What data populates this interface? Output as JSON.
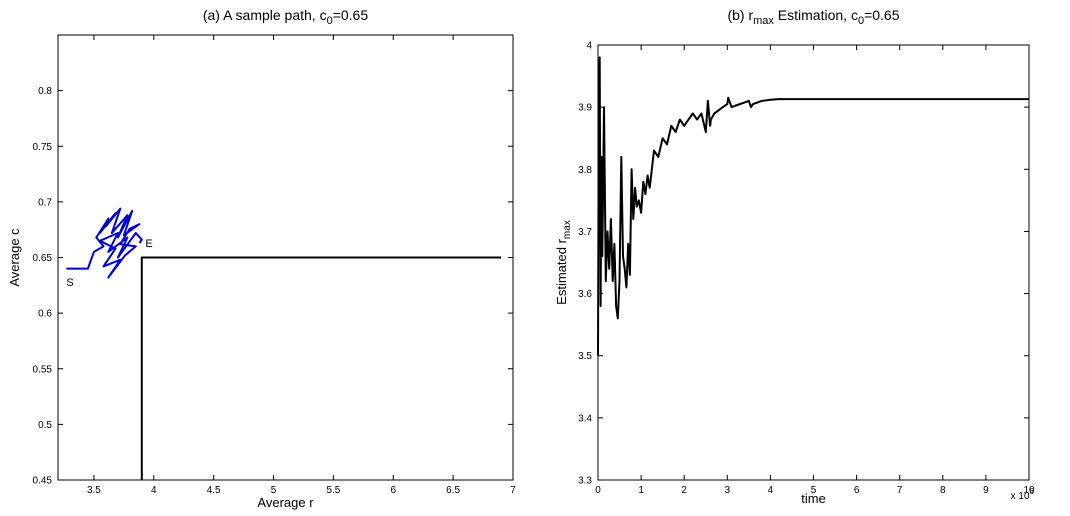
{
  "chart_data": [
    {
      "type": "line",
      "title_prefix": "(a)  A sample path, c",
      "title_sub": "0",
      "title_suffix": "=0.65",
      "xlabel": "Average r",
      "ylabel": "Average c",
      "xlim": [
        3.2,
        7
      ],
      "ylim": [
        0.45,
        0.85
      ],
      "xticks": [
        "3.5",
        "4",
        "4.5",
        "5",
        "5.5",
        "6",
        "6.5",
        "7"
      ],
      "yticks": [
        "0.45",
        "0.5",
        "0.55",
        "0.6",
        "0.65",
        "0.7",
        "0.75",
        "0.8"
      ],
      "annotations": [
        {
          "text": "S",
          "x": 3.27,
          "y": 0.628
        },
        {
          "text": "E",
          "x": 3.93,
          "y": 0.663
        }
      ],
      "series": [
        {
          "color": "#0000cc",
          "x": [
            3.27,
            3.45,
            3.5,
            3.58,
            3.52,
            3.62,
            3.55,
            3.68,
            3.6,
            3.72,
            3.65,
            3.78,
            3.7,
            3.82,
            3.75,
            3.88,
            3.8,
            3.72,
            3.85,
            3.76,
            3.62,
            3.72,
            3.58,
            3.68,
            3.55,
            3.7,
            3.62,
            3.78,
            3.7,
            3.85,
            3.9,
            3.88
          ],
          "y": [
            0.64,
            0.64,
            0.655,
            0.66,
            0.668,
            0.685,
            0.672,
            0.69,
            0.678,
            0.694,
            0.672,
            0.688,
            0.668,
            0.692,
            0.67,
            0.68,
            0.676,
            0.662,
            0.66,
            0.652,
            0.632,
            0.648,
            0.642,
            0.658,
            0.665,
            0.672,
            0.655,
            0.668,
            0.65,
            0.672,
            0.666,
            0.663
          ]
        },
        {
          "color": "#000000",
          "x": [
            3.9,
            3.9,
            6.9
          ],
          "y": [
            0.45,
            0.65,
            0.65
          ]
        }
      ]
    },
    {
      "type": "line",
      "title_prefix": "(b)  r",
      "title_sub1": "max",
      "title_mid": " Estimation, c",
      "title_sub2": "0",
      "title_suffix": "=0.65",
      "xlabel": "time",
      "ylabel_prefix": "Estimated r",
      "ylabel_sub": "max",
      "x_multiplier_base": "x 10",
      "x_multiplier_exp": "6",
      "xlim": [
        0,
        10
      ],
      "ylim": [
        3.3,
        4
      ],
      "xticks": [
        "0",
        "1",
        "2",
        "3",
        "4",
        "5",
        "6",
        "7",
        "8",
        "9",
        "10"
      ],
      "yticks": [
        "3.3",
        "3.4",
        "3.5",
        "3.6",
        "3.7",
        "3.8",
        "3.9",
        "4"
      ],
      "series": [
        {
          "color": "#000000",
          "x": [
            0.0,
            0.02,
            0.04,
            0.06,
            0.08,
            0.1,
            0.14,
            0.18,
            0.22,
            0.26,
            0.3,
            0.34,
            0.38,
            0.42,
            0.46,
            0.5,
            0.54,
            0.58,
            0.62,
            0.66,
            0.7,
            0.74,
            0.78,
            0.82,
            0.86,
            0.9,
            0.95,
            1.0,
            1.05,
            1.1,
            1.15,
            1.2,
            1.3,
            1.4,
            1.5,
            1.6,
            1.7,
            1.8,
            1.9,
            2.0,
            2.1,
            2.2,
            2.3,
            2.4,
            2.5,
            2.55,
            2.6,
            2.62,
            2.7,
            2.8,
            2.9,
            3.0,
            3.02,
            3.1,
            3.3,
            3.5,
            3.55,
            3.6,
            3.8,
            4.0,
            4.2,
            4.5,
            5.0,
            6.0,
            7.0,
            8.0,
            9.0,
            10.0
          ],
          "y": [
            3.5,
            3.95,
            3.98,
            3.58,
            3.82,
            3.66,
            3.9,
            3.62,
            3.7,
            3.64,
            3.72,
            3.62,
            3.68,
            3.58,
            3.56,
            3.62,
            3.82,
            3.66,
            3.64,
            3.61,
            3.68,
            3.63,
            3.8,
            3.72,
            3.77,
            3.74,
            3.75,
            3.73,
            3.78,
            3.76,
            3.79,
            3.77,
            3.83,
            3.82,
            3.85,
            3.84,
            3.87,
            3.86,
            3.88,
            3.87,
            3.88,
            3.89,
            3.88,
            3.89,
            3.86,
            3.91,
            3.87,
            3.88,
            3.89,
            3.895,
            3.9,
            3.905,
            3.915,
            3.9,
            3.905,
            3.91,
            3.9,
            3.905,
            3.91,
            3.912,
            3.913,
            3.913,
            3.913,
            3.913,
            3.913,
            3.913,
            3.913,
            3.913
          ]
        }
      ]
    }
  ]
}
